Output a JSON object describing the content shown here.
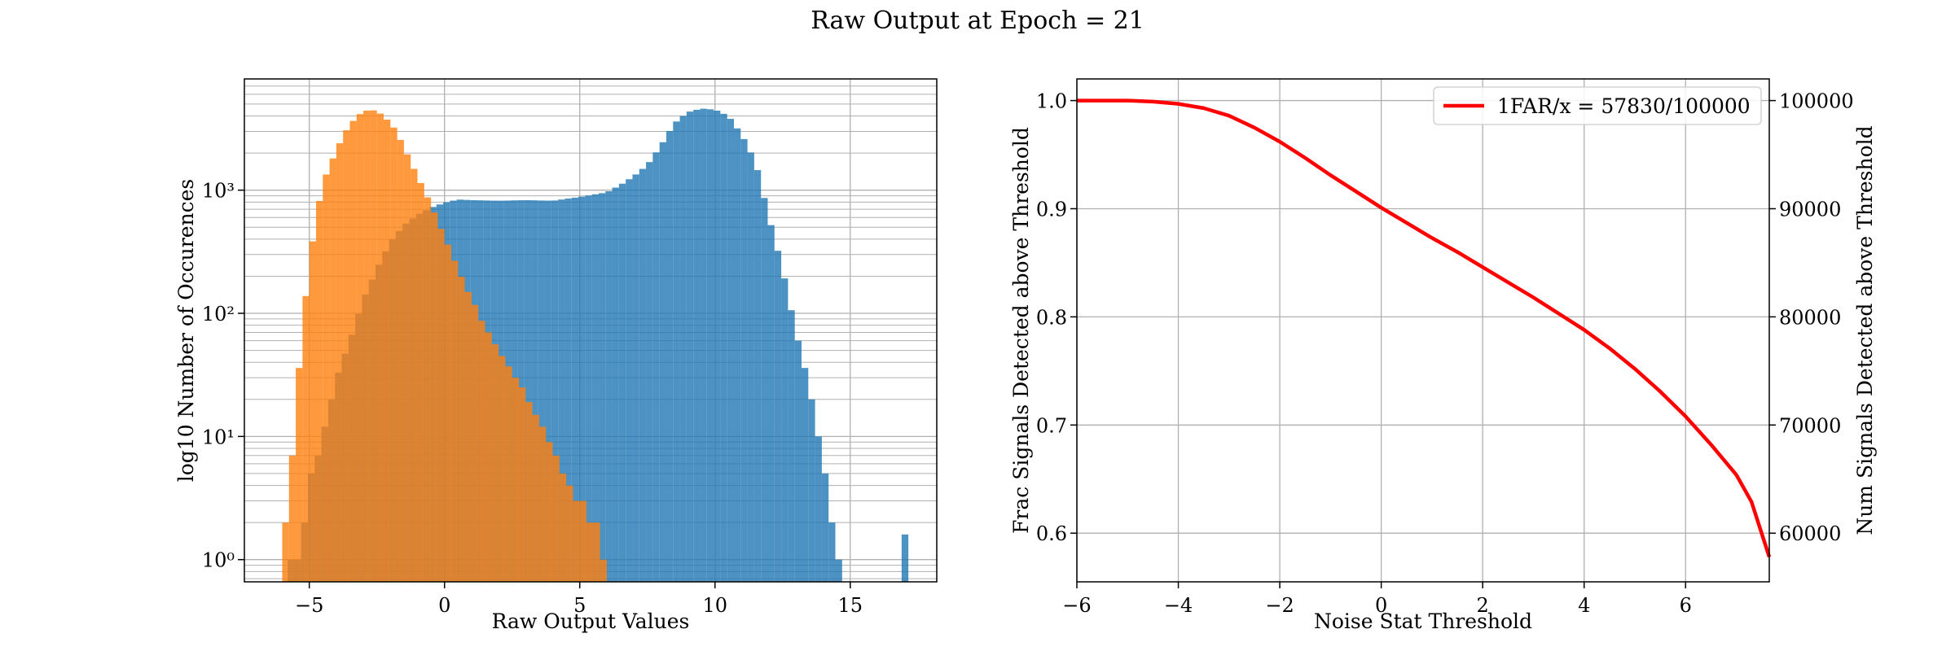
{
  "figure": {
    "suptitle": "Raw Output at Epoch = 21"
  },
  "colors": {
    "signal": "#1f77b4",
    "noise": "#ff7f0e",
    "curve": "#ff0000",
    "grid": "#b0b0b0"
  },
  "chart_data": [
    {
      "type": "histogram",
      "title": "",
      "xlabel": "Raw Output Values",
      "ylabel": "log10 Number of Occurences",
      "xlim": [
        -7.4,
        18.2
      ],
      "ylim": [
        0.66,
        8000
      ],
      "yscale": "log",
      "grid": true,
      "xticks": [
        -5,
        0,
        5,
        10,
        15
      ],
      "xtick_labels": [
        "−5",
        "0",
        "5",
        "10",
        "15"
      ],
      "yticks": [
        1,
        10,
        100,
        1000
      ],
      "ytick_labels": [
        "10⁰",
        "10¹",
        "10²",
        "10³"
      ],
      "bin_width": 0.25,
      "series": [
        {
          "color": "#1f77b4",
          "alpha": 0.8,
          "points": [
            [
              -5.8,
              1
            ],
            [
              -5.3,
              1
            ],
            [
              -5,
              4
            ],
            [
              -4.5,
              10
            ],
            [
              -4,
              30
            ],
            [
              -3.5,
              60
            ],
            [
              -3,
              130
            ],
            [
              -2.5,
              230
            ],
            [
              -2,
              380
            ],
            [
              -1.5,
              520
            ],
            [
              -1,
              630
            ],
            [
              -0.5,
              720
            ],
            [
              0,
              790
            ],
            [
              0.5,
              840
            ],
            [
              1,
              830
            ],
            [
              2,
              820
            ],
            [
              3,
              830
            ],
            [
              4,
              820
            ],
            [
              5,
              880
            ],
            [
              6,
              960
            ],
            [
              6.5,
              1100
            ],
            [
              7,
              1300
            ],
            [
              7.5,
              1600
            ],
            [
              8,
              2300
            ],
            [
              8.5,
              3500
            ],
            [
              9,
              4300
            ],
            [
              9.5,
              4600
            ],
            [
              10,
              4500
            ],
            [
              10.5,
              4000
            ],
            [
              11,
              2800
            ],
            [
              11.5,
              1700
            ],
            [
              12,
              600
            ],
            [
              12.5,
              230
            ],
            [
              13,
              70
            ],
            [
              13.5,
              25
            ],
            [
              14,
              6
            ],
            [
              14.5,
              1.5
            ],
            [
              14.7,
              1
            ]
          ],
          "extra": [
            {
              "x": 16.9,
              "y": 1
            }
          ]
        },
        {
          "color": "#ff7f0e",
          "alpha": 0.8,
          "points": [
            [
              -6,
              1
            ],
            [
              -5.6,
              8
            ],
            [
              -5.3,
              60
            ],
            [
              -5,
              250
            ],
            [
              -4.7,
              700
            ],
            [
              -4.4,
              1300
            ],
            [
              -4,
              2100
            ],
            [
              -3.7,
              2900
            ],
            [
              -3.4,
              3600
            ],
            [
              -3.1,
              4200
            ],
            [
              -2.8,
              4500
            ],
            [
              -2.5,
              4400
            ],
            [
              -2.2,
              3900
            ],
            [
              -1.9,
              3300
            ],
            [
              -1.6,
              2500
            ],
            [
              -1.3,
              1800
            ],
            [
              -1,
              1300
            ],
            [
              -0.7,
              950
            ],
            [
              -0.4,
              680
            ],
            [
              -0.1,
              470
            ],
            [
              0.2,
              330
            ],
            [
              0.5,
              230
            ],
            [
              0.8,
              160
            ],
            [
              1.1,
              120
            ],
            [
              1.4,
              85
            ],
            [
              1.7,
              65
            ],
            [
              2,
              50
            ],
            [
              2.5,
              34
            ],
            [
              3,
              22
            ],
            [
              3.5,
              13
            ],
            [
              4,
              8
            ],
            [
              4.5,
              4.5
            ],
            [
              5,
              3
            ],
            [
              5.5,
              2
            ],
            [
              6,
              1
            ]
          ]
        }
      ]
    },
    {
      "type": "line",
      "title": "",
      "xlabel": "Noise Stat Threshold",
      "ylabel": "Frac Signals Detected above Threshold",
      "y2label": "Num Signals Detected above Threshold",
      "xlim": [
        -6,
        7.65
      ],
      "ylim": [
        0.555,
        1.02
      ],
      "y2lim": [
        55500,
        102000
      ],
      "grid": true,
      "xticks": [
        -6,
        -4,
        -2,
        0,
        2,
        4,
        6
      ],
      "xtick_labels": [
        "−6",
        "−4",
        "−2",
        "0",
        "2",
        "4",
        "6"
      ],
      "yticks": [
        0.6,
        0.7,
        0.8,
        0.9,
        1.0
      ],
      "ytick_labels": [
        "0.6",
        "0.7",
        "0.8",
        "0.9",
        "1.0"
      ],
      "y2ticks": [
        60000,
        70000,
        80000,
        90000,
        100000
      ],
      "y2tick_labels": [
        "60000",
        "70000",
        "80000",
        "90000",
        "100000"
      ],
      "legend_position": "upper-right",
      "series": [
        {
          "name": "1FAR/x = 57830/100000",
          "color": "#ff0000",
          "x": [
            -6,
            -5,
            -4.5,
            -4,
            -3.5,
            -3,
            -2.5,
            -2,
            -1.5,
            -1,
            -0.5,
            0,
            0.5,
            1,
            1.5,
            2,
            2.5,
            3,
            3.5,
            4,
            4.5,
            5,
            5.5,
            6,
            6.5,
            7,
            7.3,
            7.65
          ],
          "y": [
            1.0,
            1.0,
            0.999,
            0.997,
            0.993,
            0.986,
            0.975,
            0.962,
            0.947,
            0.931,
            0.916,
            0.901,
            0.887,
            0.873,
            0.86,
            0.846,
            0.832,
            0.818,
            0.803,
            0.788,
            0.771,
            0.752,
            0.731,
            0.708,
            0.682,
            0.654,
            0.629,
            0.578
          ]
        }
      ]
    }
  ]
}
